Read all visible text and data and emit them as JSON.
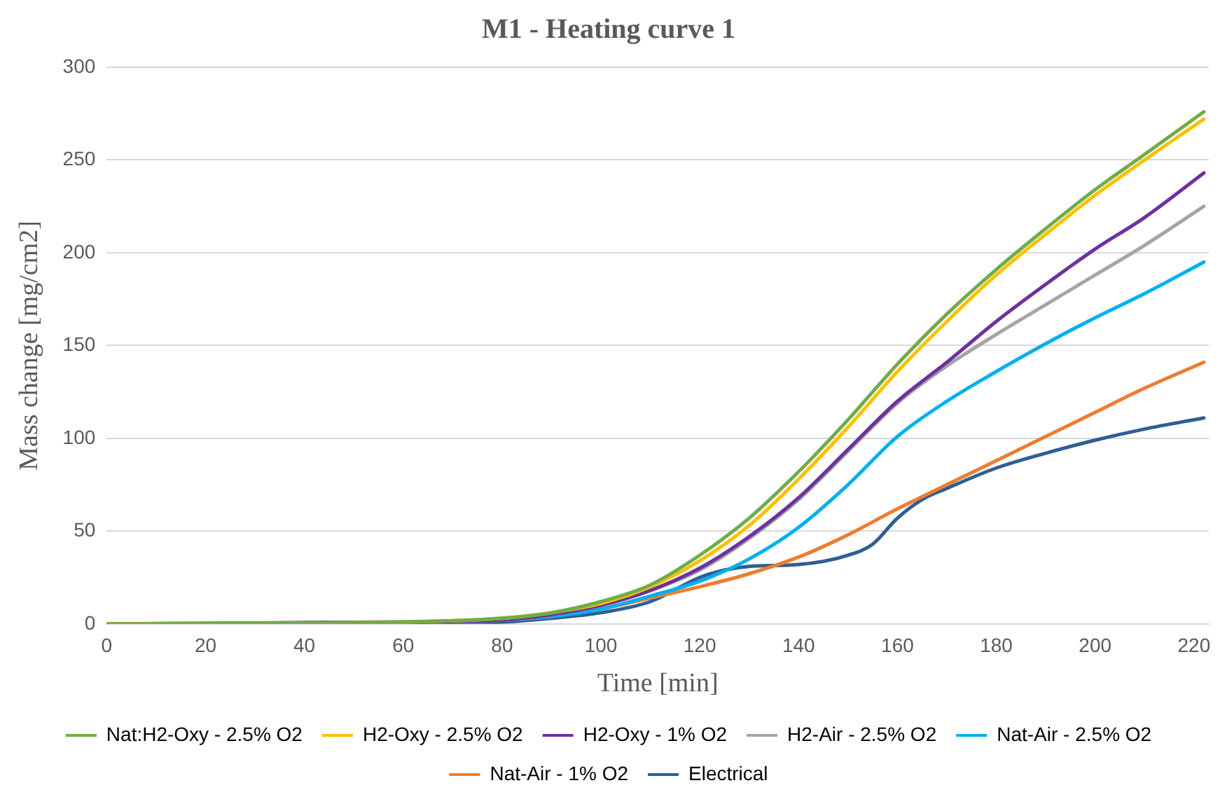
{
  "chart_data": {
    "type": "line",
    "title": "M1 - Heating curve 1",
    "xlabel": "Time [min]",
    "ylabel": "Mass change [mg/cm2]",
    "x": [
      0,
      60,
      80,
      90,
      100,
      110,
      120,
      130,
      140,
      150,
      160,
      170,
      180,
      190,
      200,
      210,
      222
    ],
    "xlim": [
      0,
      223
    ],
    "xticks": [
      0,
      20,
      40,
      60,
      80,
      100,
      120,
      140,
      160,
      180,
      200,
      220
    ],
    "ylim": [
      0,
      300
    ],
    "yticks": [
      0,
      50,
      100,
      150,
      200,
      250,
      300
    ],
    "grid": "y",
    "legend": "bottom",
    "marker": "none",
    "line_style": "solid",
    "series": [
      {
        "name": "Nat:H2-Oxy - 2.5% O2",
        "color": "#70ad47",
        "values": [
          0,
          1,
          3,
          6,
          12,
          21,
          37,
          57,
          82,
          110,
          140,
          167,
          191,
          213,
          234,
          253,
          276
        ]
      },
      {
        "name": "H2-Oxy - 2.5% O2",
        "color": "#ffc000",
        "values": [
          0,
          1,
          3,
          6,
          11,
          20,
          34,
          53,
          78,
          106,
          136,
          163,
          188,
          210,
          231,
          250,
          272
        ]
      },
      {
        "name": "H2-Oxy - 1% O2",
        "color": "#7030a0",
        "values": [
          0,
          1,
          2,
          5,
          10,
          18,
          30,
          47,
          68,
          94,
          120,
          141,
          163,
          183,
          202,
          219,
          243
        ]
      },
      {
        "name": "H2-Air - 2.5% O2",
        "color": "#a5a5a5",
        "values": [
          0,
          1,
          2,
          5,
          10,
          18,
          29,
          46,
          67,
          93,
          119,
          139,
          156,
          172,
          188,
          204,
          225
        ]
      },
      {
        "name": "Nat-Air - 2.5% O2",
        "color": "#00b0f0",
        "values": [
          0,
          0,
          2,
          4,
          8,
          15,
          23,
          35,
          52,
          75,
          101,
          120,
          136,
          151,
          165,
          178,
          195
        ]
      },
      {
        "name": "Nat-Air - 1% O2",
        "color": "#ed7d31",
        "values": [
          0,
          1,
          2,
          4,
          8,
          14,
          20,
          27,
          36,
          48,
          62,
          75,
          88,
          101,
          114,
          127,
          141
        ]
      },
      {
        "name": "Electrical",
        "color": "#2e5f95",
        "x": [
          0,
          60,
          80,
          90,
          100,
          110,
          120,
          125,
          130,
          140,
          150,
          155,
          160,
          165,
          170,
          180,
          190,
          200,
          210,
          222
        ],
        "values": [
          0,
          0,
          1,
          3,
          6,
          12,
          25,
          29,
          31,
          32,
          37,
          43,
          57,
          67,
          73,
          84,
          92,
          99,
          105,
          111
        ]
      }
    ]
  }
}
